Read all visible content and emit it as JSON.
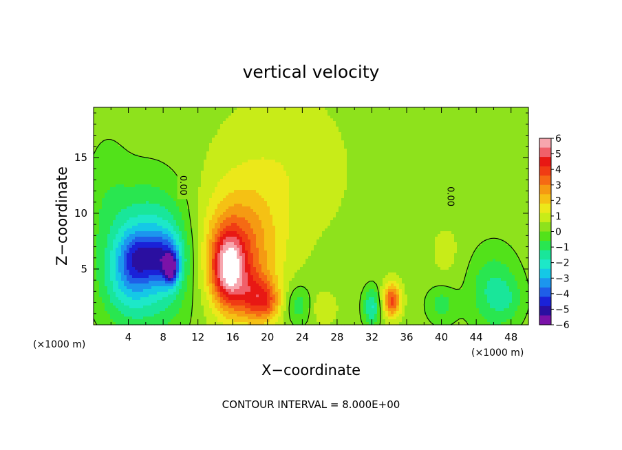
{
  "chart_data": {
    "type": "heatmap",
    "title": "vertical velocity",
    "xlabel": "X−coordinate",
    "ylabel": "Z−coordinate",
    "x_unit_label": "(×1000 m)",
    "x_unit_label_right": "(×1000 m)",
    "xlim": [
      0,
      50
    ],
    "ylim": [
      0,
      19.5
    ],
    "x_ticks": [
      4,
      8,
      12,
      16,
      20,
      24,
      28,
      32,
      36,
      40,
      44,
      48
    ],
    "x_tick_labels": [
      "4",
      "8",
      "12",
      "16",
      "20",
      "24",
      "28",
      "32",
      "36",
      "40",
      "44",
      "48"
    ],
    "y_ticks": [
      5,
      10,
      15
    ],
    "y_tick_labels": [
      "5",
      "10",
      "15"
    ],
    "colorbar": {
      "min": -6,
      "max": 6,
      "ticks": [
        6,
        5,
        4,
        3,
        2,
        1,
        0,
        -1,
        -2,
        -3,
        -4,
        -5,
        -6
      ],
      "tick_labels": [
        "6",
        "5",
        "4",
        "3",
        "2",
        "1",
        "0",
        "−1",
        "−2",
        "−3",
        "−4",
        "−5",
        "−6"
      ],
      "colors": [
        "#7a12a8",
        "#2a0fa0",
        "#1a22d8",
        "#1f5ee8",
        "#1c96ee",
        "#15c8e6",
        "#1de8c8",
        "#19e69a",
        "#29e650",
        "#52e21a",
        "#8ee21c",
        "#c8ec18",
        "#ece81a",
        "#f5c114",
        "#f59a12",
        "#f56a14",
        "#f03c14",
        "#e81814",
        "#f0606a",
        "#f7a6ae"
      ],
      "under_color": "#7a12a8",
      "over_color": "#ffffff"
    },
    "contour_interval_label": "CONTOUR INTERVAL = 8.000E+00",
    "contour_labels": [
      "0.00",
      "0.00"
    ],
    "background_value": 0.3,
    "features": [
      {
        "kind": "gaussian",
        "x": 6.5,
        "z": 6.0,
        "sx": 3.5,
        "sz": 4.2,
        "value": -3.0
      },
      {
        "kind": "gaussian",
        "x": 3.5,
        "z": 3.5,
        "sx": 1.8,
        "sz": 2.2,
        "value": -1.0
      },
      {
        "kind": "gaussian",
        "x": 5.0,
        "z": 6.0,
        "sx": 1.5,
        "sz": 1.7,
        "value": -2.2
      },
      {
        "kind": "gaussian",
        "x": 8.2,
        "z": 6.0,
        "sx": 1.4,
        "sz": 1.6,
        "value": -2.4
      },
      {
        "kind": "gaussian",
        "x": 8.9,
        "z": 5.0,
        "sx": 0.55,
        "sz": 0.9,
        "value": -3.5
      },
      {
        "kind": "gaussian",
        "x": 1.5,
        "z": 12.0,
        "sx": 1.8,
        "sz": 4.0,
        "value": -0.5
      },
      {
        "kind": "gaussian",
        "x": 16.5,
        "z": 6.5,
        "sx": 3.2,
        "sz": 3.8,
        "value": 3.0
      },
      {
        "kind": "gaussian",
        "x": 15.5,
        "z": 5.0,
        "sx": 1.3,
        "sz": 2.2,
        "value": 4.0
      },
      {
        "kind": "gaussian",
        "x": 18.5,
        "z": 2.5,
        "sx": 1.6,
        "sz": 1.6,
        "value": 2.2
      },
      {
        "kind": "gaussian",
        "x": 20.0,
        "z": 2.0,
        "sx": 1.2,
        "sz": 1.2,
        "value": 1.6
      },
      {
        "kind": "gaussian",
        "x": 21.5,
        "z": 14.0,
        "sx": 5.5,
        "sz": 5.0,
        "value": 0.8
      },
      {
        "kind": "gaussian",
        "x": 23.5,
        "z": 1.8,
        "sx": 1.1,
        "sz": 1.3,
        "value": -1.3
      },
      {
        "kind": "gaussian",
        "x": 26.5,
        "z": 1.5,
        "sx": 1.0,
        "sz": 1.0,
        "value": 0.9
      },
      {
        "kind": "gaussian",
        "x": 32.0,
        "z": 1.6,
        "sx": 0.7,
        "sz": 1.2,
        "value": -2.2
      },
      {
        "kind": "gaussian",
        "x": 34.3,
        "z": 2.2,
        "sx": 0.75,
        "sz": 1.1,
        "value": 3.5
      },
      {
        "kind": "gaussian",
        "x": 40.0,
        "z": 1.8,
        "sx": 1.2,
        "sz": 1.2,
        "value": -1.2
      },
      {
        "kind": "gaussian",
        "x": 40.5,
        "z": 6.5,
        "sx": 1.4,
        "sz": 2.0,
        "value": 0.5
      },
      {
        "kind": "gaussian",
        "x": 46.0,
        "z": 3.0,
        "sx": 2.0,
        "sz": 2.6,
        "value": -1.6
      },
      {
        "kind": "gaussian",
        "x": 47.8,
        "z": 2.3,
        "sx": 1.3,
        "sz": 1.3,
        "value": -0.6
      }
    ]
  }
}
